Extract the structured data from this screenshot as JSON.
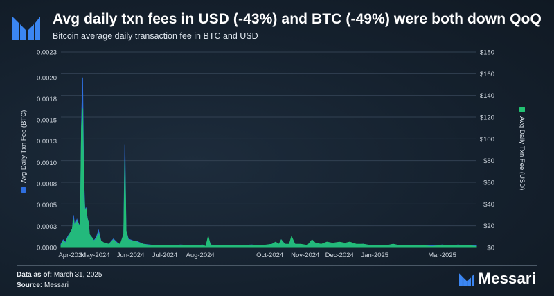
{
  "header": {
    "title": "Avg daily txn fees in USD (-43%) and BTC (-49%) were both down QoQ",
    "subtitle": "Bitcoin average daily transaction fee in BTC and USD"
  },
  "footer": {
    "as_of_label": "Data as of:",
    "as_of_value": "March 31, 2025",
    "source_label": "Source:",
    "source_value": "Messari",
    "brand": "Messari"
  },
  "colors": {
    "btc_series": "#2f6fe0",
    "usd_series": "#22c272",
    "gridline": "#324152",
    "background": "#15212e"
  },
  "chart_data": {
    "type": "area",
    "title": "Avg daily txn fees in USD (-43%) and BTC (-49%) were both down QoQ",
    "subtitle": "Bitcoin average daily transaction fee in BTC and USD",
    "grid": true,
    "x_range": [
      "2024-04-01",
      "2025-03-31"
    ],
    "x_tick_labels": [
      "Apr-2024",
      "May-2024",
      "Jun-2024",
      "Jul-2024",
      "Aug-2024",
      "Oct-2024",
      "Nov-2024",
      "Dec-2024",
      "Jan-2025",
      "Mar-2025"
    ],
    "x_tick_dates": [
      "2024-04-01",
      "2024-05-01",
      "2024-06-01",
      "2024-07-01",
      "2024-08-01",
      "2024-10-01",
      "2024-11-01",
      "2024-12-01",
      "2025-01-01",
      "2025-03-01"
    ],
    "left_axis": {
      "label": "Avg Daily Txn Fee (BTC)",
      "range": [
        0,
        0.0023
      ],
      "tick_values": [
        0,
        0.00025,
        0.0005,
        0.00075,
        0.001,
        0.00125,
        0.0015,
        0.00175,
        0.002,
        0.0023
      ],
      "tick_labels": [
        "0.0000",
        "0.0003",
        "0.0005",
        "0.0008",
        "0.0010",
        "0.0013",
        "0.0015",
        "0.0018",
        "0.0020",
        "0.0023"
      ]
    },
    "right_axis": {
      "label": "Avg Daily Txn Fee (USD)",
      "range": [
        0,
        180
      ],
      "tick_values": [
        0,
        20,
        40,
        60,
        80,
        100,
        120,
        140,
        160,
        180
      ],
      "tick_labels": [
        "$0",
        "$20",
        "$40",
        "$60",
        "$80",
        "$100",
        "$120",
        "$140",
        "$160",
        "$180"
      ]
    },
    "series": [
      {
        "name": "Avg Daily Txn Fee (BTC)",
        "axis": "left",
        "color": "#2f6fe0",
        "points": [
          [
            "2024-04-01",
            4e-05
          ],
          [
            "2024-04-03",
            9e-05
          ],
          [
            "2024-04-05",
            6e-05
          ],
          [
            "2024-04-07",
            0.00013
          ],
          [
            "2024-04-09",
            0.00017
          ],
          [
            "2024-04-11",
            0.00022
          ],
          [
            "2024-04-12",
            0.00038
          ],
          [
            "2024-04-13",
            0.00025
          ],
          [
            "2024-04-15",
            0.00033
          ],
          [
            "2024-04-17",
            0.00026
          ],
          [
            "2024-04-18",
            0.00028
          ],
          [
            "2024-04-19",
            0.00145
          ],
          [
            "2024-04-20",
            0.002
          ],
          [
            "2024-04-21",
            0.0008
          ],
          [
            "2024-04-22",
            0.00043
          ],
          [
            "2024-04-23",
            0.00047
          ],
          [
            "2024-04-24",
            0.00035
          ],
          [
            "2024-04-25",
            0.0003
          ],
          [
            "2024-04-26",
            0.00015
          ],
          [
            "2024-04-28",
            0.00012
          ],
          [
            "2024-04-30",
            8e-05
          ],
          [
            "2024-05-02",
            0.00012
          ],
          [
            "2024-05-04",
            0.0002
          ],
          [
            "2024-05-06",
            8e-05
          ],
          [
            "2024-05-09",
            5e-05
          ],
          [
            "2024-05-13",
            4e-05
          ],
          [
            "2024-05-17",
            0.0001
          ],
          [
            "2024-05-20",
            6e-05
          ],
          [
            "2024-05-23",
            3e-05
          ],
          [
            "2024-05-26",
            0.00016
          ],
          [
            "2024-05-27",
            0.00121
          ],
          [
            "2024-05-28",
            0.0002
          ],
          [
            "2024-05-30",
            0.0001
          ],
          [
            "2024-06-03",
            8e-05
          ],
          [
            "2024-06-07",
            7e-05
          ],
          [
            "2024-06-12",
            4e-05
          ],
          [
            "2024-06-18",
            3e-05
          ],
          [
            "2024-06-25",
            2e-05
          ],
          [
            "2024-07-05",
            2e-05
          ],
          [
            "2024-07-15",
            3e-05
          ],
          [
            "2024-07-25",
            2e-05
          ],
          [
            "2024-08-03",
            3e-05
          ],
          [
            "2024-08-06",
            1e-05
          ],
          [
            "2024-08-08",
            0.00012
          ],
          [
            "2024-08-10",
            3e-05
          ],
          [
            "2024-08-20",
            2e-05
          ],
          [
            "2024-09-01",
            2e-05
          ],
          [
            "2024-09-15",
            3e-05
          ],
          [
            "2024-09-25",
            2e-05
          ],
          [
            "2024-10-03",
            4e-05
          ],
          [
            "2024-10-06",
            6e-05
          ],
          [
            "2024-10-09",
            3e-05
          ],
          [
            "2024-10-11",
            9e-05
          ],
          [
            "2024-10-14",
            4e-05
          ],
          [
            "2024-10-18",
            3e-05
          ],
          [
            "2024-10-20",
            0.00011
          ],
          [
            "2024-10-23",
            4e-05
          ],
          [
            "2024-10-28",
            3e-05
          ],
          [
            "2024-11-03",
            2e-05
          ],
          [
            "2024-11-07",
            8e-05
          ],
          [
            "2024-11-10",
            4e-05
          ],
          [
            "2024-11-15",
            3e-05
          ],
          [
            "2024-11-20",
            5e-05
          ],
          [
            "2024-11-25",
            4e-05
          ],
          [
            "2024-12-01",
            5e-05
          ],
          [
            "2024-12-06",
            4e-05
          ],
          [
            "2024-12-10",
            5e-05
          ],
          [
            "2024-12-16",
            3e-05
          ],
          [
            "2024-12-22",
            4e-05
          ],
          [
            "2024-12-28",
            2e-05
          ],
          [
            "2025-01-05",
            2e-05
          ],
          [
            "2025-01-12",
            2e-05
          ],
          [
            "2025-01-17",
            4e-05
          ],
          [
            "2025-01-22",
            2e-05
          ],
          [
            "2025-02-01",
            2e-05
          ],
          [
            "2025-02-10",
            2e-05
          ],
          [
            "2025-02-20",
            2e-05
          ],
          [
            "2025-03-01",
            3e-05
          ],
          [
            "2025-03-08",
            2e-05
          ],
          [
            "2025-03-15",
            3e-05
          ],
          [
            "2025-03-22",
            2e-05
          ],
          [
            "2025-03-31",
            2e-05
          ]
        ]
      },
      {
        "name": "Avg Daily Txn Fee (USD)",
        "axis": "right",
        "color": "#22c272",
        "points": [
          [
            "2024-04-01",
            2
          ],
          [
            "2024-04-03",
            6
          ],
          [
            "2024-04-05",
            4
          ],
          [
            "2024-04-07",
            9
          ],
          [
            "2024-04-09",
            13
          ],
          [
            "2024-04-11",
            17
          ],
          [
            "2024-04-12",
            26
          ],
          [
            "2024-04-13",
            19
          ],
          [
            "2024-04-15",
            24
          ],
          [
            "2024-04-17",
            20
          ],
          [
            "2024-04-18",
            22
          ],
          [
            "2024-04-19",
            110
          ],
          [
            "2024-04-20",
            128
          ],
          [
            "2024-04-21",
            55
          ],
          [
            "2024-04-22",
            32
          ],
          [
            "2024-04-23",
            36
          ],
          [
            "2024-04-24",
            27
          ],
          [
            "2024-04-25",
            23
          ],
          [
            "2024-04-26",
            12
          ],
          [
            "2024-04-28",
            9
          ],
          [
            "2024-04-30",
            6
          ],
          [
            "2024-05-02",
            8
          ],
          [
            "2024-05-04",
            13
          ],
          [
            "2024-05-06",
            6
          ],
          [
            "2024-05-09",
            4
          ],
          [
            "2024-05-13",
            3
          ],
          [
            "2024-05-17",
            7
          ],
          [
            "2024-05-20",
            4
          ],
          [
            "2024-05-23",
            3
          ],
          [
            "2024-05-26",
            12
          ],
          [
            "2024-05-27",
            80
          ],
          [
            "2024-05-28",
            15
          ],
          [
            "2024-05-30",
            7
          ],
          [
            "2024-06-03",
            6
          ],
          [
            "2024-06-07",
            5
          ],
          [
            "2024-06-12",
            3
          ],
          [
            "2024-06-18",
            2
          ],
          [
            "2024-06-25",
            2
          ],
          [
            "2024-07-05",
            2
          ],
          [
            "2024-07-15",
            2
          ],
          [
            "2024-07-25",
            2
          ],
          [
            "2024-08-03",
            2
          ],
          [
            "2024-08-06",
            1
          ],
          [
            "2024-08-08",
            10
          ],
          [
            "2024-08-10",
            2
          ],
          [
            "2024-08-20",
            2
          ],
          [
            "2024-09-01",
            2
          ],
          [
            "2024-09-15",
            2
          ],
          [
            "2024-09-25",
            2
          ],
          [
            "2024-10-03",
            3
          ],
          [
            "2024-10-06",
            5
          ],
          [
            "2024-10-09",
            3
          ],
          [
            "2024-10-11",
            7
          ],
          [
            "2024-10-14",
            3
          ],
          [
            "2024-10-18",
            3
          ],
          [
            "2024-10-20",
            10
          ],
          [
            "2024-10-23",
            3
          ],
          [
            "2024-10-28",
            3
          ],
          [
            "2024-11-03",
            2
          ],
          [
            "2024-11-07",
            7
          ],
          [
            "2024-11-10",
            4
          ],
          [
            "2024-11-15",
            3
          ],
          [
            "2024-11-20",
            5
          ],
          [
            "2024-11-25",
            4
          ],
          [
            "2024-12-01",
            5
          ],
          [
            "2024-12-06",
            4
          ],
          [
            "2024-12-10",
            5
          ],
          [
            "2024-12-16",
            3
          ],
          [
            "2024-12-22",
            3
          ],
          [
            "2024-12-28",
            2
          ],
          [
            "2025-01-05",
            2
          ],
          [
            "2025-01-12",
            2
          ],
          [
            "2025-01-17",
            3
          ],
          [
            "2025-01-22",
            2
          ],
          [
            "2025-02-01",
            2
          ],
          [
            "2025-02-10",
            2
          ],
          [
            "2025-02-20",
            1
          ],
          [
            "2025-03-01",
            2
          ],
          [
            "2025-03-08",
            2
          ],
          [
            "2025-03-15",
            2
          ],
          [
            "2025-03-22",
            2
          ],
          [
            "2025-03-31",
            1
          ]
        ]
      }
    ]
  }
}
